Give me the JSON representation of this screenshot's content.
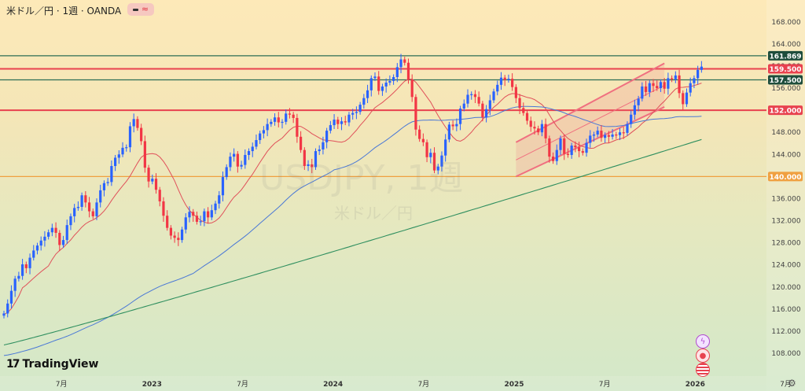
{
  "header": {
    "symbol_title": "米ドル／円 · 1週 · OANDA"
  },
  "watermark": {
    "main": "USDJPY, 1週",
    "sub": "米ドル／円"
  },
  "branding": {
    "logo_mark": "17",
    "logo_text": "TradingView"
  },
  "icons": {
    "indicator_dash": "dash-icon",
    "indicator_wave": "wave-icon",
    "flash": "flash-icon",
    "record": "record-icon",
    "flag": "us-flag-icon",
    "settings": "gear-icon"
  },
  "colors": {
    "bull": "#2962ff",
    "bear": "#f23645",
    "ma_short": "#e0505a",
    "ma_mid": "#4a78d6",
    "ma_long": "#2f8f5f",
    "hline_red": "#e8424f",
    "hline_green": "#2c6e55",
    "hline_orange": "#f0a040",
    "channel": "#f07080"
  },
  "chart_data": {
    "type": "candlestick",
    "symbol": "USDJPY",
    "timeframe": "1週",
    "ylim": [
      104,
      168
    ],
    "y_ticks": [
      108,
      112,
      116,
      120,
      124,
      128,
      132,
      136,
      140,
      144,
      148,
      152,
      156,
      160,
      164,
      168
    ],
    "x_ticks": [
      "7月",
      "2023",
      "7月",
      "2024",
      "7月",
      "2025",
      "7月",
      "2026",
      "7月"
    ],
    "price_tags": [
      {
        "label": "161.869",
        "value": 161.869,
        "color": "#1e4d3c"
      },
      {
        "label": "159.500",
        "value": 159.5,
        "color": "#e8424f"
      },
      {
        "label": "157.500",
        "value": 157.5,
        "color": "#1e4d3c"
      },
      {
        "label": "152.000",
        "value": 152.0,
        "color": "#e8424f"
      },
      {
        "label": "140.000",
        "value": 140.0,
        "color": "#f0a040"
      }
    ],
    "horizontal_lines": [
      {
        "value": 161.869,
        "color": "#2c6e55"
      },
      {
        "value": 159.5,
        "color": "#e8424f"
      },
      {
        "value": 157.5,
        "color": "#2c6e55"
      },
      {
        "value": 152.0,
        "color": "#e8424f"
      },
      {
        "value": 140.0,
        "color": "#f0a040"
      }
    ],
    "closes": [
      115.2,
      117.0,
      119.3,
      121.5,
      122.0,
      124.1,
      123.4,
      125.3,
      126.6,
      127.5,
      128.4,
      129.1,
      129.9,
      130.7,
      129.8,
      127.6,
      128.5,
      131.2,
      132.8,
      134.3,
      134.5,
      136.6,
      135.3,
      133.7,
      132.8,
      135.3,
      137.5,
      138.8,
      139.0,
      141.9,
      143.4,
      144.0,
      145.2,
      145.3,
      149.1,
      150.4,
      148.8,
      146.4,
      141.6,
      139.1,
      139.6,
      137.6,
      135.5,
      132.9,
      130.7,
      129.3,
      128.9,
      128.5,
      130.4,
      132.6,
      133.6,
      132.9,
      131.8,
      131.9,
      133.7,
      132.6,
      133.9,
      135.1,
      136.6,
      139.9,
      141.7,
      143.6,
      144.1,
      141.8,
      142.1,
      143.9,
      144.6,
      145.4,
      146.6,
      147.8,
      148.4,
      149.5,
      149.9,
      150.7,
      149.8,
      149.9,
      151.4,
      151.2,
      150.6,
      147.2,
      144.8,
      141.9,
      142.2,
      141.7,
      144.6,
      144.9,
      146.2,
      148.3,
      149.3,
      150.3,
      149.5,
      150.0,
      149.8,
      151.2,
      151.5,
      151.7,
      153.0,
      154.2,
      155.6,
      157.8,
      158.1,
      155.5,
      156.3,
      157.0,
      157.3,
      158.0,
      159.8,
      161.2,
      160.6,
      157.5,
      154.4,
      148.5,
      146.8,
      146.2,
      143.5,
      144.3,
      141.1,
      141.8,
      143.8,
      146.7,
      149.4,
      149.1,
      149.5,
      152.3,
      153.2,
      154.8,
      154.9,
      154.4,
      153.2,
      150.7,
      152.2,
      153.8,
      155.4,
      156.6,
      157.9,
      157.5,
      157.7,
      156.2,
      154.2,
      152.4,
      151.5,
      150.1,
      149.0,
      148.7,
      148.0,
      149.5,
      146.9,
      143.6,
      142.8,
      144.8,
      146.9,
      144.1,
      143.9,
      145.6,
      145.3,
      144.6,
      144.3,
      146.1,
      147.4,
      147.6,
      148.3,
      147.0,
      147.5,
      147.2,
      147.6,
      147.5,
      148.0,
      147.9,
      149.5,
      151.2,
      152.9,
      154.1,
      156.3,
      155.3,
      156.9,
      156.4,
      156.0,
      157.1,
      155.9,
      157.8,
      157.6,
      158.3,
      155.1,
      153.1,
      155.2,
      156.9,
      157.8,
      159.3,
      159.9
    ]
  }
}
